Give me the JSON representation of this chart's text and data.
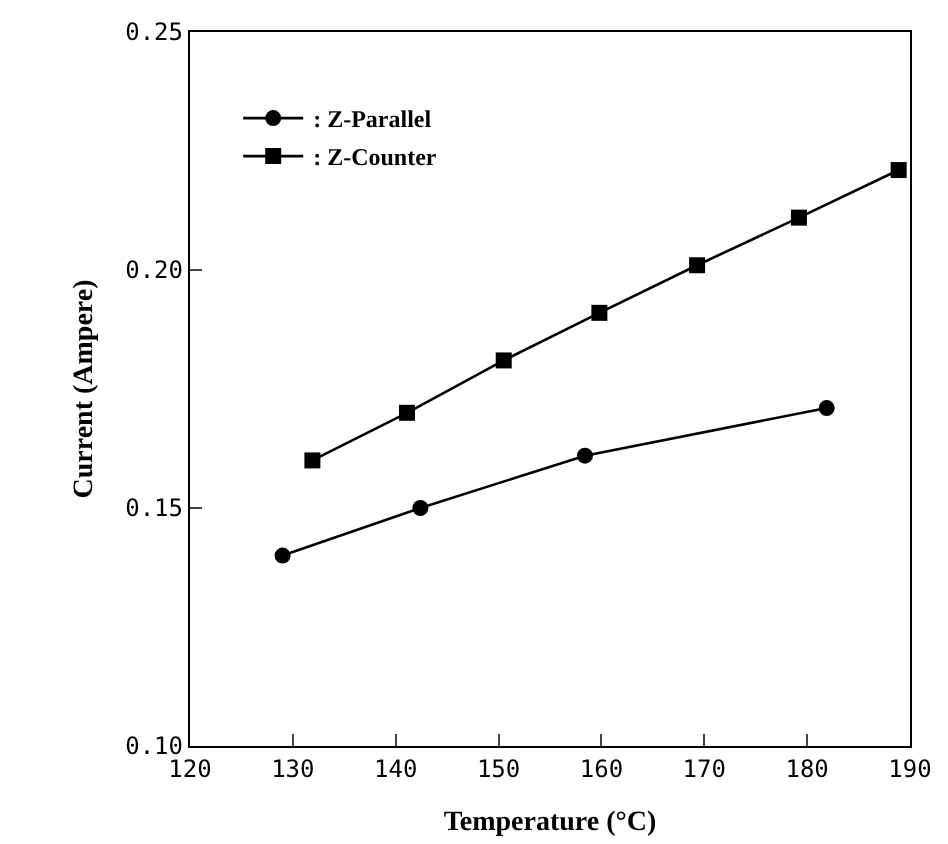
{
  "chart_data": {
    "type": "line",
    "xlabel": "Temperature (°C)",
    "ylabel": "Current (Ampere)",
    "xlim": [
      120,
      190
    ],
    "xticks": [
      120,
      130,
      140,
      150,
      160,
      170,
      180,
      190
    ],
    "ylim": [
      0.1,
      0.25
    ],
    "yticks": [
      {
        "value": 0.1,
        "label": "0.10"
      },
      {
        "value": 0.15,
        "label": "0.15"
      },
      {
        "value": 0.2,
        "label": "0.20"
      },
      {
        "value": 0.25,
        "label": "0.25"
      }
    ],
    "grid": false,
    "legend": "top left",
    "line_style": "solid",
    "series": [
      {
        "name": ": Z-Parallel",
        "color": "#000000",
        "marker": "circle",
        "x": [
          129,
          142.4,
          158.4,
          181.9
        ],
        "values": [
          0.14,
          0.15,
          0.161,
          0.171
        ]
      },
      {
        "name": ": Z-Counter",
        "color": "#000000",
        "marker": "square",
        "x": [
          131.9,
          141.1,
          150.5,
          159.8,
          169.3,
          179.2,
          188.9
        ],
        "values": [
          0.16,
          0.17,
          0.181,
          0.191,
          0.201,
          0.211,
          0.221
        ]
      }
    ]
  }
}
